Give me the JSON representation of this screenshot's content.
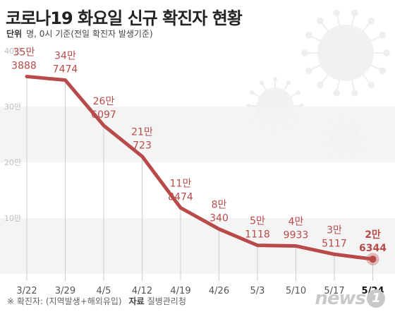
{
  "title": "코로나19 화요일 신규 확진자 현황",
  "unit": {
    "label": "단위",
    "text": "명, 0시 기준(전일 확진자 발생기준)"
  },
  "footer": {
    "note": "※ 확진자: (지역발생+해외유입)",
    "source_label": "자료",
    "source": "질병관리청"
  },
  "logo": {
    "text": "news",
    "mark": "1"
  },
  "colors": {
    "line": "#b94a4a",
    "label": "#b94a4a",
    "band": "#f2f2f2",
    "axis": "#cccccc"
  },
  "chart_data": {
    "type": "line",
    "categories": [
      "3/22",
      "3/29",
      "4/5",
      "4/12",
      "4/19",
      "4/26",
      "5/3",
      "5/10",
      "5/17",
      "5/24"
    ],
    "values": [
      353888,
      347474,
      266097,
      210723,
      118474,
      80340,
      51118,
      49933,
      35117,
      26344
    ],
    "data_labels": [
      [
        "35만",
        "3888"
      ],
      [
        "34만",
        "7474"
      ],
      [
        "26만",
        "6097"
      ],
      [
        "21만",
        "723"
      ],
      [
        "11만",
        "8474"
      ],
      [
        "8만",
        "340"
      ],
      [
        "5만",
        "1118"
      ],
      [
        "4만",
        "9933"
      ],
      [
        "3만",
        "5117"
      ],
      [
        "2만",
        "6344"
      ]
    ],
    "y_ticks": [
      "10만",
      "20만",
      "30만",
      "40만"
    ],
    "y_tick_values": [
      100000,
      200000,
      300000,
      400000
    ],
    "ylim": [
      0,
      400000
    ],
    "grid": "alternating bands",
    "highlight_last": true
  }
}
